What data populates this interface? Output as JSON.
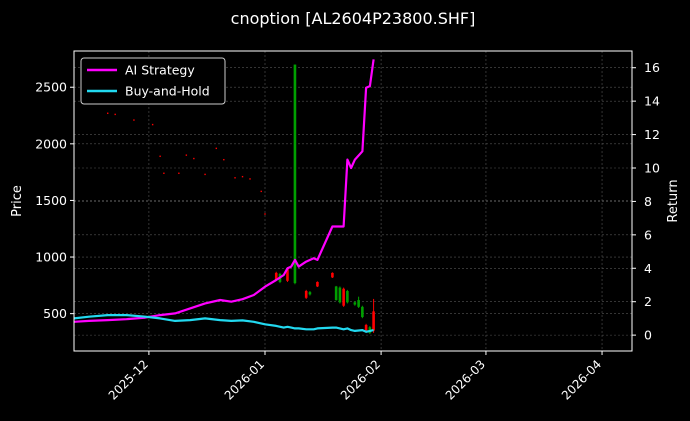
{
  "chart_data": {
    "type": "line",
    "title": "cnoption [AL2604P23800.SHF]",
    "xlabel": "",
    "ylabel": "Price",
    "y2label": "Return",
    "xlim": [
      "2025-11-11",
      "2026-04-09"
    ],
    "ylim": [
      170,
      2820
    ],
    "y2lim": [
      -0.95,
      17.0
    ],
    "xticks": [
      "2025-12",
      "2026-01",
      "2026-02",
      "2026-03",
      "2026-04"
    ],
    "yticks": [
      "500",
      "1000",
      "1500",
      "2000",
      "2500"
    ],
    "y2ticks": [
      "0",
      "2",
      "4",
      "6",
      "8",
      "10",
      "12",
      "14",
      "16"
    ],
    "grid": true,
    "legend_position": "top-left",
    "legend": [
      "AI Strategy",
      "Buy-and-Hold"
    ],
    "colors": {
      "background": "#000000",
      "ai_strategy": "#ff00ff",
      "buy_and_hold": "#22d9f0",
      "up": "#00a000",
      "down": "#ff0000"
    },
    "series": [
      {
        "name": "AI Strategy",
        "axis": "right",
        "x": [
          "2025-11-11",
          "2025-11-15",
          "2025-11-20",
          "2025-11-25",
          "2025-11-30",
          "2025-12-04",
          "2025-12-08",
          "2025-12-12",
          "2025-12-16",
          "2025-12-20",
          "2025-12-23",
          "2025-12-26",
          "2025-12-29",
          "2026-01-01",
          "2026-01-04",
          "2026-01-06",
          "2026-01-07",
          "2026-01-08",
          "2026-01-09",
          "2026-01-10",
          "2026-01-12",
          "2026-01-14",
          "2026-01-15",
          "2026-01-19",
          "2026-01-20",
          "2026-01-22",
          "2026-01-23",
          "2026-01-24",
          "2026-01-25",
          "2026-01-27",
          "2026-01-28",
          "2026-01-29",
          "2026-01-30"
        ],
        "values": [
          0.8,
          0.85,
          0.9,
          0.95,
          1.05,
          1.2,
          1.3,
          1.6,
          1.9,
          2.1,
          2.0,
          2.15,
          2.4,
          2.9,
          3.3,
          3.6,
          4.0,
          4.1,
          4.5,
          4.1,
          4.4,
          4.6,
          4.5,
          6.5,
          6.5,
          6.5,
          10.5,
          10.0,
          10.5,
          11.0,
          14.8,
          14.9,
          16.5
        ]
      },
      {
        "name": "Buy-and-Hold",
        "axis": "right",
        "x": [
          "2025-11-11",
          "2025-11-15",
          "2025-11-20",
          "2025-11-25",
          "2025-11-30",
          "2025-12-04",
          "2025-12-08",
          "2025-12-12",
          "2025-12-16",
          "2025-12-20",
          "2025-12-23",
          "2025-12-26",
          "2025-12-29",
          "2026-01-01",
          "2026-01-04",
          "2026-01-06",
          "2026-01-07",
          "2026-01-08",
          "2026-01-09",
          "2026-01-10",
          "2026-01-12",
          "2026-01-14",
          "2026-01-15",
          "2026-01-19",
          "2026-01-20",
          "2026-01-22",
          "2026-01-23",
          "2026-01-24",
          "2026-01-25",
          "2026-01-27",
          "2026-01-28",
          "2026-01-29",
          "2026-01-30"
        ],
        "values": [
          1.0,
          1.1,
          1.2,
          1.2,
          1.1,
          1.0,
          0.85,
          0.9,
          1.0,
          0.9,
          0.85,
          0.88,
          0.8,
          0.65,
          0.55,
          0.45,
          0.5,
          0.45,
          0.4,
          0.4,
          0.35,
          0.35,
          0.4,
          0.45,
          0.45,
          0.35,
          0.4,
          0.3,
          0.25,
          0.3,
          0.2,
          0.25,
          0.3
        ]
      }
    ],
    "candles": [
      {
        "x": "2026-01-04",
        "open": 860,
        "close": 800,
        "high": 870,
        "low": 790
      },
      {
        "x": "2026-01-05",
        "open": 780,
        "close": 850,
        "high": 860,
        "low": 770
      },
      {
        "x": "2026-01-07",
        "open": 900,
        "close": 790,
        "high": 910,
        "low": 780
      },
      {
        "x": "2026-01-09",
        "open": 770,
        "close": 2700,
        "high": 2700,
        "low": 760
      },
      {
        "x": "2026-01-12",
        "open": 700,
        "close": 640,
        "high": 710,
        "low": 630
      },
      {
        "x": "2026-01-13",
        "open": 670,
        "close": 690,
        "high": 700,
        "low": 660
      },
      {
        "x": "2026-01-15",
        "open": 780,
        "close": 740,
        "high": 785,
        "low": 735
      },
      {
        "x": "2026-01-19",
        "open": 860,
        "close": 820,
        "high": 865,
        "low": 815
      },
      {
        "x": "2026-01-20",
        "open": 620,
        "close": 740,
        "high": 745,
        "low": 615
      },
      {
        "x": "2026-01-21",
        "open": 600,
        "close": 730,
        "high": 740,
        "low": 590
      },
      {
        "x": "2026-01-22",
        "open": 720,
        "close": 570,
        "high": 730,
        "low": 560
      },
      {
        "x": "2026-01-23",
        "open": 600,
        "close": 700,
        "high": 710,
        "low": 590
      },
      {
        "x": "2026-01-25",
        "open": 580,
        "close": 600,
        "high": 610,
        "low": 570
      },
      {
        "x": "2026-01-26",
        "open": 560,
        "close": 620,
        "high": 650,
        "low": 550
      },
      {
        "x": "2026-01-27",
        "open": 470,
        "close": 560,
        "high": 570,
        "low": 460
      },
      {
        "x": "2026-01-28",
        "open": 400,
        "close": 350,
        "high": 410,
        "low": 340
      },
      {
        "x": "2026-01-29",
        "open": 330,
        "close": 380,
        "high": 390,
        "low": 320
      },
      {
        "x": "2026-01-30",
        "open": 520,
        "close": 350,
        "high": 630,
        "low": 330
      }
    ],
    "price_dots": [
      {
        "x": "2025-11-20",
        "y": 2270
      },
      {
        "x": "2025-11-22",
        "y": 2260
      },
      {
        "x": "2025-11-27",
        "y": 2210
      },
      {
        "x": "2025-12-02",
        "y": 2170
      },
      {
        "x": "2025-12-04",
        "y": 1890
      },
      {
        "x": "2025-12-05",
        "y": 1740
      },
      {
        "x": "2025-12-09",
        "y": 1740
      },
      {
        "x": "2025-12-11",
        "y": 1900
      },
      {
        "x": "2025-12-13",
        "y": 1870
      },
      {
        "x": "2025-12-16",
        "y": 1730
      },
      {
        "x": "2025-12-19",
        "y": 1960
      },
      {
        "x": "2025-12-21",
        "y": 1860
      },
      {
        "x": "2025-12-24",
        "y": 1700
      },
      {
        "x": "2025-12-26",
        "y": 1710
      },
      {
        "x": "2025-12-28",
        "y": 1690
      },
      {
        "x": "2025-12-31",
        "y": 1580
      },
      {
        "x": "2026-01-01",
        "y": 1380
      }
    ]
  }
}
